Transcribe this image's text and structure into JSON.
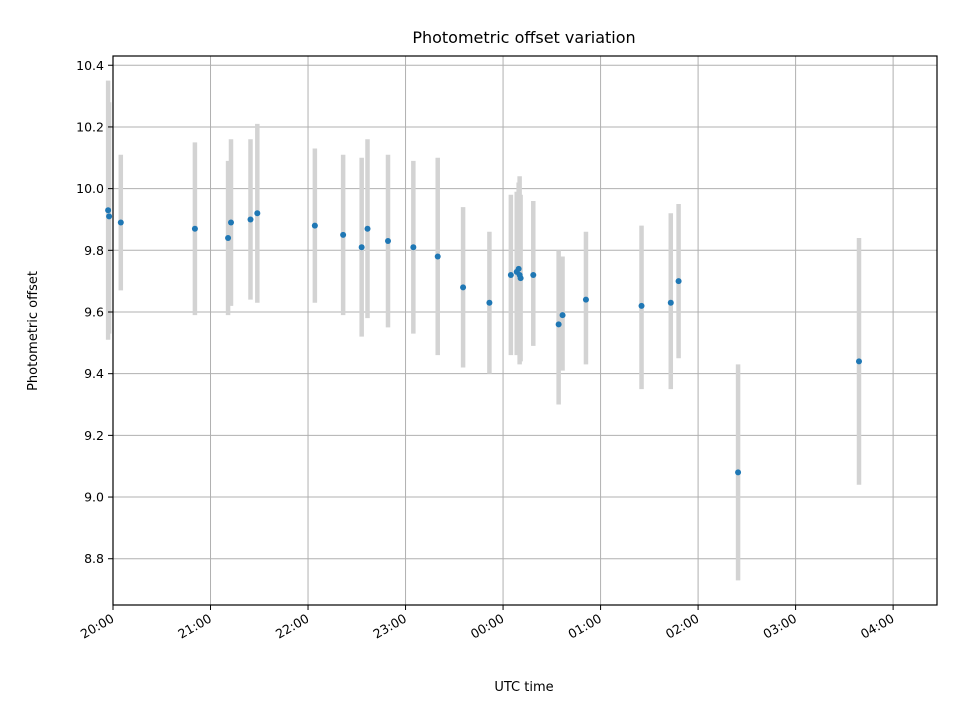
{
  "chart_data": {
    "type": "scatter",
    "title": "Photometric offset variation",
    "xlabel": "UTC time",
    "ylabel": "Photometric offset",
    "x_unit": "hours since 00:00 UTC",
    "xlim": [
      -4.0,
      4.45
    ],
    "ylim": [
      8.65,
      10.43
    ],
    "grid": true,
    "x_ticks": [
      {
        "value": -4,
        "label": "20:00"
      },
      {
        "value": -3,
        "label": "21:00"
      },
      {
        "value": -2,
        "label": "22:00"
      },
      {
        "value": -1,
        "label": "23:00"
      },
      {
        "value": 0,
        "label": "00:00"
      },
      {
        "value": 1,
        "label": "01:00"
      },
      {
        "value": 2,
        "label": "02:00"
      },
      {
        "value": 3,
        "label": "03:00"
      },
      {
        "value": 4,
        "label": "04:00"
      }
    ],
    "y_ticks": [
      {
        "value": 8.8,
        "label": "8.8"
      },
      {
        "value": 9.0,
        "label": "9.0"
      },
      {
        "value": 9.2,
        "label": "9.2"
      },
      {
        "value": 9.4,
        "label": "9.4"
      },
      {
        "value": 9.6,
        "label": "9.6"
      },
      {
        "value": 9.8,
        "label": "9.8"
      },
      {
        "value": 10.0,
        "label": "10.0"
      },
      {
        "value": 10.2,
        "label": "10.2"
      },
      {
        "value": 10.4,
        "label": "10.4"
      }
    ],
    "points": [
      {
        "time": "19:57",
        "x": -4.05,
        "y": 9.93,
        "ymin": 9.51,
        "ymax": 10.35
      },
      {
        "time": "19:57",
        "x": -4.04,
        "y": 9.91,
        "ymin": 9.53,
        "ymax": 10.28
      },
      {
        "time": "20:05",
        "x": -3.92,
        "y": 9.89,
        "ymin": 9.67,
        "ymax": 10.11
      },
      {
        "time": "20:51",
        "x": -3.16,
        "y": 9.87,
        "ymin": 9.59,
        "ymax": 10.15
      },
      {
        "time": "21:11",
        "x": -2.82,
        "y": 9.84,
        "ymin": 9.59,
        "ymax": 10.09
      },
      {
        "time": "21:13",
        "x": -2.79,
        "y": 9.89,
        "ymin": 9.62,
        "ymax": 10.16
      },
      {
        "time": "21:25",
        "x": -2.59,
        "y": 9.9,
        "ymin": 9.64,
        "ymax": 10.16
      },
      {
        "time": "21:29",
        "x": -2.52,
        "y": 9.92,
        "ymin": 9.63,
        "ymax": 10.21
      },
      {
        "time": "22:05",
        "x": -1.93,
        "y": 9.88,
        "ymin": 9.63,
        "ymax": 10.13
      },
      {
        "time": "22:22",
        "x": -1.64,
        "y": 9.85,
        "ymin": 9.59,
        "ymax": 10.11
      },
      {
        "time": "22:34",
        "x": -1.45,
        "y": 9.81,
        "ymin": 9.52,
        "ymax": 10.1
      },
      {
        "time": "22:37",
        "x": -1.39,
        "y": 9.87,
        "ymin": 9.58,
        "ymax": 10.16
      },
      {
        "time": "22:50",
        "x": -1.18,
        "y": 9.83,
        "ymin": 9.55,
        "ymax": 10.11
      },
      {
        "time": "23:05",
        "x": -0.92,
        "y": 9.81,
        "ymin": 9.53,
        "ymax": 10.09
      },
      {
        "time": "23:20",
        "x": -0.67,
        "y": 9.78,
        "ymin": 9.46,
        "ymax": 10.1
      },
      {
        "time": "23:35",
        "x": -0.41,
        "y": 9.68,
        "ymin": 9.42,
        "ymax": 9.94
      },
      {
        "time": "23:52",
        "x": -0.14,
        "y": 9.63,
        "ymin": 9.4,
        "ymax": 9.86
      },
      {
        "time": "00:05",
        "x": 0.08,
        "y": 9.72,
        "ymin": 9.46,
        "ymax": 9.98
      },
      {
        "time": "00:09",
        "x": 0.14,
        "y": 9.73,
        "ymin": 9.46,
        "ymax": 9.99
      },
      {
        "time": "00:10",
        "x": 0.16,
        "y": 9.74,
        "ymin": 9.47,
        "ymax": 10.02
      },
      {
        "time": "00:10",
        "x": 0.17,
        "y": 9.72,
        "ymin": 9.43,
        "ymax": 10.04
      },
      {
        "time": "00:11",
        "x": 0.18,
        "y": 9.71,
        "ymin": 9.44,
        "ymax": 9.98
      },
      {
        "time": "00:19",
        "x": 0.31,
        "y": 9.72,
        "ymin": 9.49,
        "ymax": 9.96
      },
      {
        "time": "00:34",
        "x": 0.57,
        "y": 9.56,
        "ymin": 9.3,
        "ymax": 9.8
      },
      {
        "time": "00:37",
        "x": 0.61,
        "y": 9.59,
        "ymin": 9.41,
        "ymax": 9.78
      },
      {
        "time": "00:51",
        "x": 0.85,
        "y": 9.64,
        "ymin": 9.43,
        "ymax": 9.86
      },
      {
        "time": "01:25",
        "x": 1.42,
        "y": 9.62,
        "ymin": 9.35,
        "ymax": 9.88
      },
      {
        "time": "01:43",
        "x": 1.72,
        "y": 9.63,
        "ymin": 9.35,
        "ymax": 9.92
      },
      {
        "time": "01:48",
        "x": 1.8,
        "y": 9.7,
        "ymin": 9.45,
        "ymax": 9.95
      },
      {
        "time": "02:25",
        "x": 2.41,
        "y": 9.08,
        "ymin": 8.73,
        "ymax": 9.43
      },
      {
        "time": "03:39",
        "x": 3.65,
        "y": 9.44,
        "ymin": 9.04,
        "ymax": 9.84
      }
    ]
  }
}
